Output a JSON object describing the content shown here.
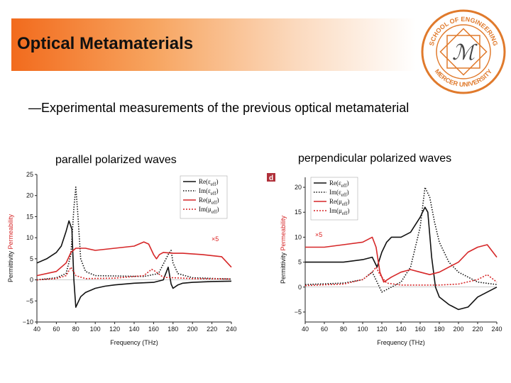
{
  "header": {
    "title": "Optical Metamaterials"
  },
  "seal": {
    "top_text": "SCHOOL OF ENGINEERING",
    "bottom_text": "MERCER UNIVERSITY",
    "monogram": "ℳ",
    "color": "#e07a2c"
  },
  "bullet": "—Experimental measurements of the previous optical metamaterial",
  "chart_data": [
    {
      "type": "line",
      "title": "parallel polarized waves",
      "panel_tag": "",
      "xlabel": "Frequency (THz)",
      "ylabel_parts": [
        "Permittivity",
        "Permeability"
      ],
      "xlim": [
        40,
        240
      ],
      "ylim": [
        -10,
        25
      ],
      "xticks": [
        40,
        60,
        80,
        100,
        120,
        140,
        160,
        180,
        200,
        220,
        240
      ],
      "yticks": [
        -10,
        -5,
        0,
        5,
        10,
        15,
        20,
        25
      ],
      "legend": [
        "Re(ε_eff)",
        "Im(ε_eff)",
        "Re(μ_eff)",
        "Im(μ_eff)"
      ],
      "annotation": "×5",
      "series": [
        {
          "name": "Re(ε_eff)",
          "color": "#111111",
          "dash": "solid",
          "x": [
            40,
            50,
            60,
            65,
            70,
            73,
            76,
            78,
            80,
            82,
            85,
            90,
            100,
            110,
            120,
            140,
            160,
            170,
            175,
            178,
            180,
            185,
            190,
            200,
            220,
            240
          ],
          "y": [
            4,
            5,
            6.5,
            8,
            11.5,
            14,
            12,
            0,
            -6.5,
            -5.5,
            -4,
            -3,
            -2,
            -1.5,
            -1.2,
            -0.8,
            -0.6,
            0,
            3,
            -1,
            -2,
            -1.2,
            -0.8,
            -0.6,
            -0.4,
            -0.3
          ]
        },
        {
          "name": "Im(ε_eff)",
          "color": "#111111",
          "dash": "1.5,2",
          "x": [
            40,
            60,
            70,
            75,
            78,
            80,
            82,
            85,
            90,
            100,
            150,
            165,
            175,
            178,
            180,
            185,
            200,
            240
          ],
          "y": [
            0,
            0.5,
            1.5,
            6,
            17,
            22,
            16,
            5,
            2,
            1,
            0.8,
            1.5,
            6,
            7,
            4,
            1.5,
            0.5,
            0.2
          ]
        },
        {
          "name": "Re(μ_eff)",
          "color": "#d62728",
          "dash": "solid",
          "x": [
            40,
            60,
            70,
            75,
            80,
            90,
            100,
            120,
            140,
            150,
            155,
            160,
            163,
            166,
            170,
            180,
            190,
            210,
            230,
            240
          ],
          "y": [
            1,
            2,
            4,
            6.5,
            7.5,
            7.5,
            7,
            7.5,
            8,
            9,
            8.5,
            6,
            5,
            6,
            6.5,
            6.3,
            6.3,
            6,
            5.5,
            3
          ]
        },
        {
          "name": "Im(μ_eff)",
          "color": "#d62728",
          "dash": "2,2",
          "x": [
            40,
            60,
            70,
            75,
            80,
            90,
            120,
            150,
            158,
            162,
            170,
            200,
            240
          ],
          "y": [
            0,
            0.3,
            1,
            3,
            1,
            0.3,
            0.4,
            1,
            2.5,
            2,
            0.6,
            0.3,
            0.2
          ]
        }
      ]
    },
    {
      "type": "line",
      "title": "perpendicular polarized waves",
      "panel_tag": "d",
      "xlabel": "Frequency (THz)",
      "ylabel_parts": [
        "Permittivity",
        "Permeability"
      ],
      "xlim": [
        40,
        240
      ],
      "ylim": [
        -7,
        22
      ],
      "xticks": [
        40,
        60,
        80,
        100,
        120,
        140,
        160,
        180,
        200,
        220,
        240
      ],
      "yticks": [
        -5,
        0,
        5,
        10,
        15,
        20
      ],
      "legend": [
        "Re(ε_eff)",
        "Im(ε_eff)",
        "Re(μ_eff)",
        "Im(μ_eff)"
      ],
      "annotation": "×5",
      "series": [
        {
          "name": "Re(ε_eff)",
          "color": "#111111",
          "dash": "solid",
          "x": [
            40,
            60,
            80,
            100,
            110,
            115,
            120,
            125,
            130,
            140,
            150,
            160,
            165,
            168,
            172,
            176,
            180,
            190,
            200,
            210,
            220,
            240
          ],
          "y": [
            5,
            5,
            5,
            5.5,
            6,
            4,
            7,
            9,
            10,
            10,
            11,
            14,
            16,
            15,
            6,
            0,
            -2,
            -3.5,
            -4.5,
            -4,
            -2,
            0
          ]
        },
        {
          "name": "Im(ε_eff)",
          "color": "#111111",
          "dash": "1.5,2",
          "x": [
            40,
            80,
            100,
            110,
            115,
            120,
            130,
            140,
            150,
            160,
            165,
            170,
            175,
            180,
            190,
            200,
            220,
            240
          ],
          "y": [
            0.5,
            0.8,
            1.5,
            3,
            1,
            -1,
            0,
            1,
            4,
            12,
            20,
            18,
            13,
            9,
            5,
            3,
            1,
            0.5
          ]
        },
        {
          "name": "Re(μ_eff)",
          "color": "#d62728",
          "dash": "solid",
          "x": [
            40,
            60,
            80,
            100,
            110,
            114,
            118,
            122,
            130,
            140,
            150,
            160,
            170,
            180,
            190,
            200,
            210,
            220,
            230,
            240
          ],
          "y": [
            8,
            8,
            8.5,
            9,
            10,
            8,
            3,
            1,
            2,
            3,
            3.5,
            3,
            2.5,
            3,
            4,
            5,
            7,
            8,
            8.5,
            6
          ]
        },
        {
          "name": "Im(μ_eff)",
          "color": "#d62728",
          "dash": "2,2",
          "x": [
            40,
            80,
            100,
            110,
            114,
            118,
            125,
            140,
            180,
            200,
            220,
            230,
            240
          ],
          "y": [
            0.3,
            0.6,
            1.5,
            3,
            4,
            2.5,
            0.8,
            0.4,
            0.4,
            0.6,
            1.5,
            2.5,
            1
          ]
        }
      ]
    }
  ]
}
